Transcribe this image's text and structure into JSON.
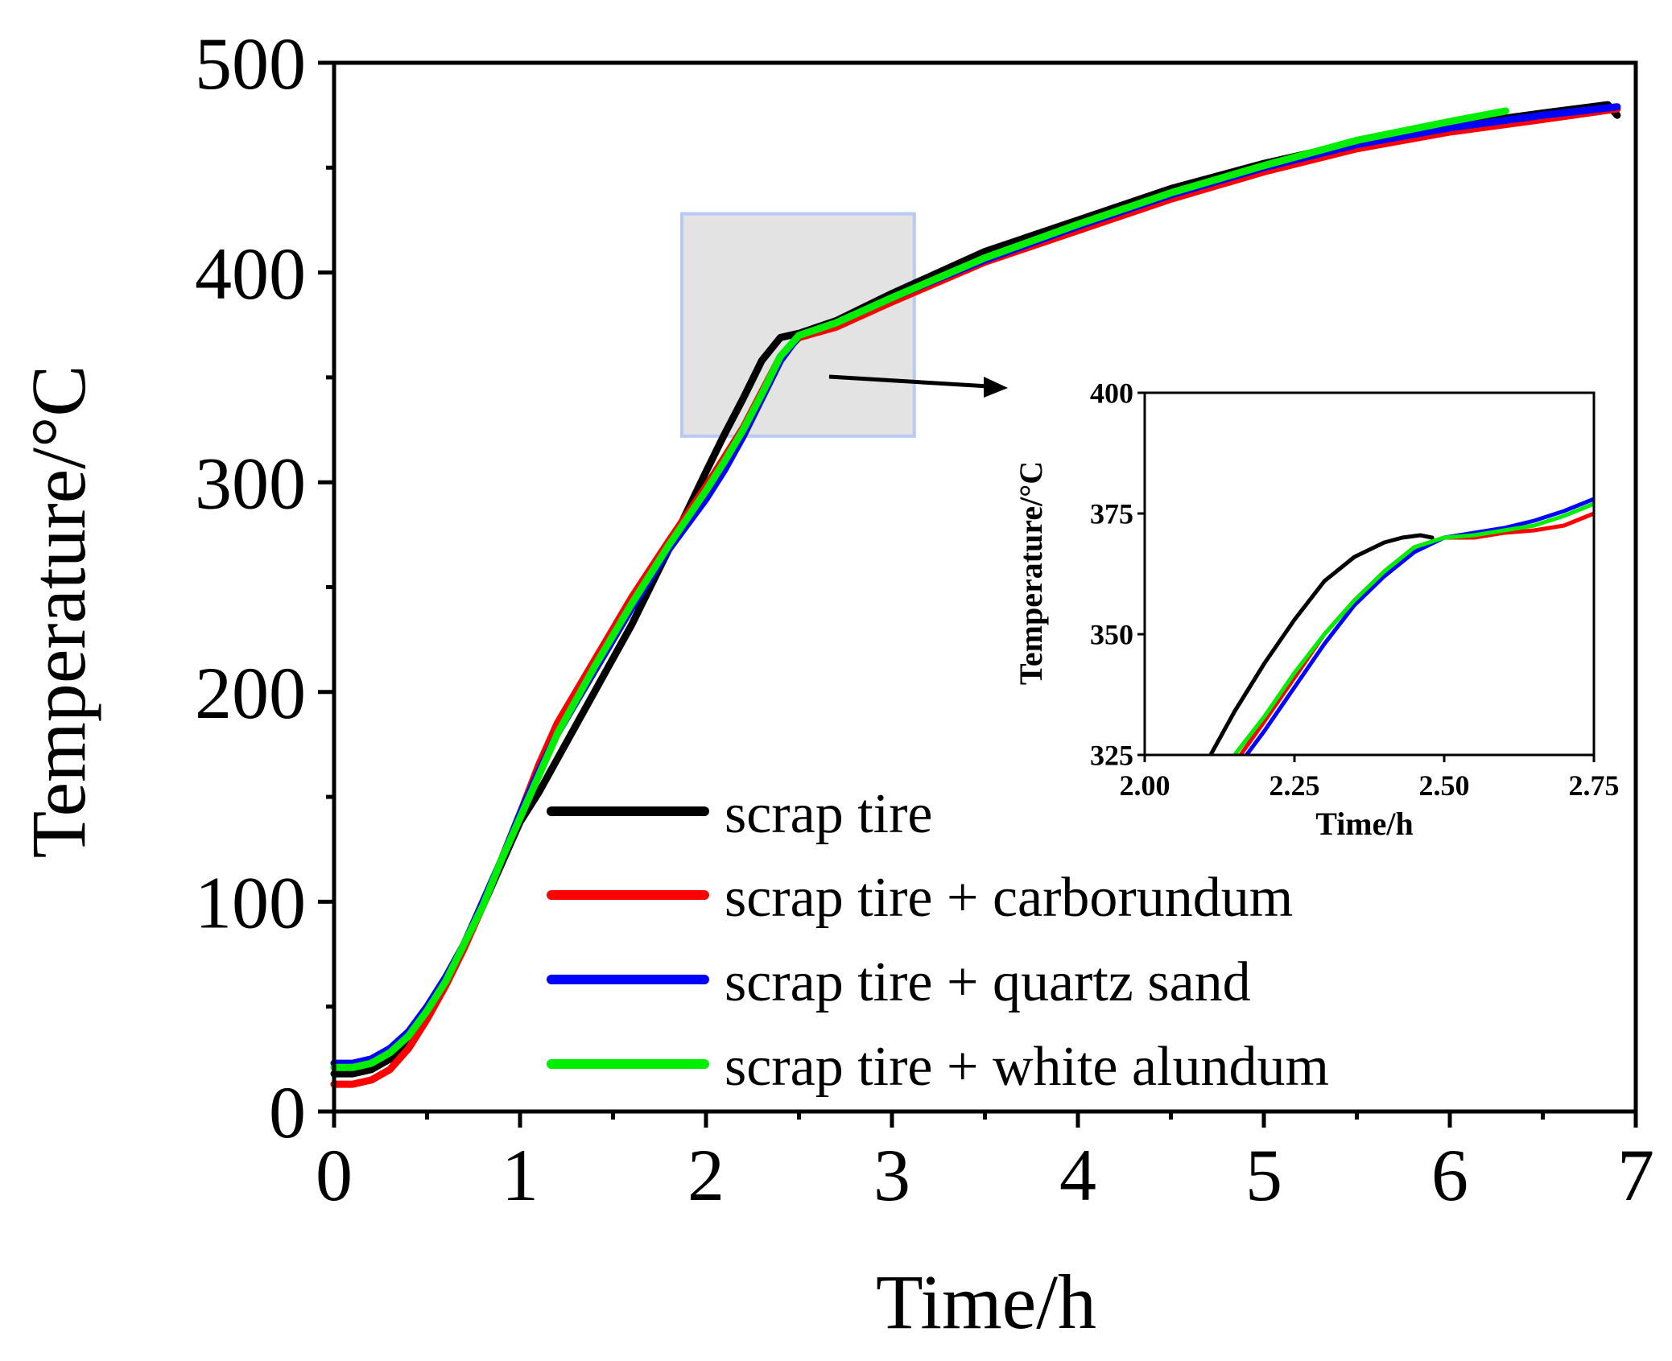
{
  "chart_data": [
    {
      "id": "main",
      "type": "line",
      "title": "",
      "xlabel": "Time/h",
      "ylabel": "Temperature/°C",
      "xlim": [
        0,
        7
      ],
      "ylim": [
        0,
        500
      ],
      "xticks": [
        0,
        1,
        2,
        3,
        4,
        5,
        6,
        7
      ],
      "xtick_labels": [
        "0",
        "1",
        "2",
        "3",
        "4",
        "5",
        "6",
        "7"
      ],
      "yticks": [
        0,
        100,
        200,
        300,
        400,
        500
      ],
      "ytick_labels": [
        "0",
        "100",
        "200",
        "300",
        "400",
        "500"
      ],
      "legend_position": "bottom-right",
      "zoom_region": {
        "x": [
          1.87,
          3.12
        ],
        "y": [
          322,
          428
        ]
      },
      "series": [
        {
          "name": "scrap tire",
          "color": "#000000",
          "x": [
            0,
            0.1,
            0.2,
            0.3,
            0.4,
            0.5,
            0.6,
            0.7,
            0.8,
            0.9,
            1.0,
            1.1,
            1.2,
            1.4,
            1.6,
            1.8,
            2.0,
            2.1,
            2.2,
            2.3,
            2.4,
            2.5,
            2.7,
            3.0,
            3.5,
            4.0,
            4.5,
            5.0,
            5.5,
            6.0,
            6.5,
            6.85,
            6.9
          ],
          "y": [
            18,
            18,
            20,
            25,
            35,
            48,
            63,
            80,
            98,
            118,
            138,
            152,
            168,
            200,
            232,
            268,
            305,
            323,
            340,
            358,
            369,
            371,
            377,
            390,
            410,
            425,
            440,
            452,
            462,
            470,
            476,
            480,
            475
          ]
        },
        {
          "name": "scrap tire + carborundum",
          "color": "#ff0000",
          "x": [
            0,
            0.1,
            0.2,
            0.3,
            0.4,
            0.5,
            0.6,
            0.7,
            0.8,
            0.9,
            1.0,
            1.1,
            1.2,
            1.4,
            1.6,
            1.8,
            2.0,
            2.1,
            2.2,
            2.3,
            2.4,
            2.5,
            2.7,
            3.0,
            3.5,
            4.0,
            4.5,
            5.0,
            5.5,
            6.0,
            6.5,
            6.9
          ],
          "y": [
            13,
            13,
            15,
            20,
            30,
            44,
            60,
            78,
            98,
            120,
            142,
            165,
            185,
            215,
            245,
            272,
            298,
            312,
            326,
            343,
            360,
            369,
            374,
            386,
            405,
            420,
            435,
            448,
            459,
            467,
            473,
            478
          ]
        },
        {
          "name": "scrap tire + quartz sand",
          "color": "#0000ff",
          "x": [
            0,
            0.1,
            0.2,
            0.3,
            0.4,
            0.5,
            0.6,
            0.7,
            0.8,
            0.9,
            1.0,
            1.1,
            1.2,
            1.4,
            1.6,
            1.8,
            2.0,
            2.1,
            2.2,
            2.3,
            2.4,
            2.5,
            2.7,
            3.0,
            3.5,
            4.0,
            4.5,
            5.0,
            5.5,
            6.0,
            6.5,
            6.9
          ],
          "y": [
            23,
            23,
            25,
            30,
            38,
            50,
            64,
            80,
            100,
            120,
            142,
            162,
            180,
            210,
            240,
            268,
            292,
            306,
            322,
            340,
            358,
            370,
            376,
            388,
            406,
            422,
            437,
            450,
            461,
            469,
            475,
            479
          ]
        },
        {
          "name": "scrap tire + white alundum",
          "color": "#00ee00",
          "x": [
            0,
            0.1,
            0.2,
            0.3,
            0.4,
            0.5,
            0.6,
            0.7,
            0.8,
            0.9,
            1.0,
            1.1,
            1.2,
            1.4,
            1.6,
            1.8,
            2.0,
            2.1,
            2.2,
            2.3,
            2.4,
            2.5,
            2.7,
            3.0,
            3.5,
            4.0,
            4.5,
            5.0,
            5.5,
            6.0,
            6.3
          ],
          "y": [
            21,
            21,
            23,
            28,
            36,
            48,
            62,
            80,
            98,
            120,
            140,
            160,
            180,
            212,
            242,
            270,
            296,
            310,
            325,
            342,
            360,
            370,
            376,
            388,
            407,
            423,
            438,
            451,
            463,
            472,
            477
          ]
        }
      ]
    },
    {
      "id": "inset",
      "type": "line",
      "title": "",
      "xlabel": "Time/h",
      "ylabel": "Temperature/°C",
      "xlim": [
        2.0,
        2.75
      ],
      "ylim": [
        325,
        400
      ],
      "xticks": [
        2.0,
        2.25,
        2.5,
        2.75
      ],
      "xtick_labels": [
        "2.00",
        "2.25",
        "2.50",
        "2.75"
      ],
      "yticks": [
        325,
        350,
        375,
        400
      ],
      "ytick_labels": [
        "325",
        "350",
        "375",
        "400"
      ],
      "series": [
        {
          "name": "scrap tire",
          "color": "#000000",
          "x": [
            2.11,
            2.15,
            2.2,
            2.25,
            2.3,
            2.35,
            2.4,
            2.43,
            2.46,
            2.48
          ],
          "y": [
            325,
            334,
            344,
            353,
            361,
            366,
            369,
            370,
            370.5,
            370
          ]
        },
        {
          "name": "scrap tire + carborundum",
          "color": "#ff0000",
          "x": [
            2.16,
            2.2,
            2.25,
            2.3,
            2.35,
            2.4,
            2.45,
            2.5,
            2.55,
            2.6,
            2.65,
            2.7,
            2.75
          ],
          "y": [
            325,
            332,
            341,
            350,
            357,
            363,
            368,
            370,
            370,
            371,
            371.5,
            372.5,
            375
          ]
        },
        {
          "name": "scrap tire + quartz sand",
          "color": "#0000ff",
          "x": [
            2.17,
            2.2,
            2.25,
            2.3,
            2.35,
            2.4,
            2.45,
            2.5,
            2.55,
            2.6,
            2.65,
            2.7,
            2.75
          ],
          "y": [
            325,
            330,
            339,
            348,
            356,
            362,
            367,
            370,
            371,
            372,
            373.5,
            375.5,
            378
          ]
        },
        {
          "name": "scrap tire + white alundum",
          "color": "#00ee00",
          "x": [
            2.15,
            2.2,
            2.25,
            2.3,
            2.35,
            2.4,
            2.45,
            2.5,
            2.55,
            2.6,
            2.65,
            2.7,
            2.75
          ],
          "y": [
            325,
            333,
            342,
            350,
            357,
            363,
            368,
            370,
            370.5,
            371.5,
            372.5,
            374.5,
            377
          ]
        }
      ]
    }
  ]
}
